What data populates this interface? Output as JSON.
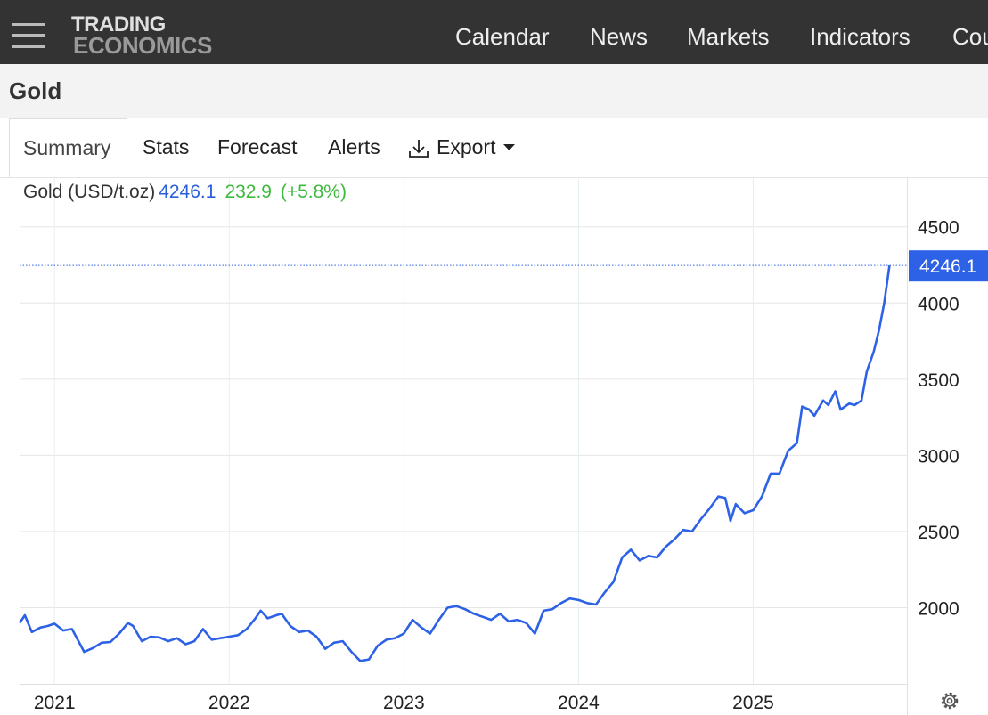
{
  "header": {
    "logo_line1": "TRADING",
    "logo_line2": "ECONOMICS",
    "nav": [
      "Calendar",
      "News",
      "Markets",
      "Indicators",
      "Countries"
    ]
  },
  "page_title": "Gold",
  "tabs": [
    "Summary",
    "Stats",
    "Forecast",
    "Alerts",
    "Export"
  ],
  "chart_data": {
    "type": "line",
    "change": 232.9,
    "change_percent_label": "(+5.8%)",
    "x": [
      2020.8,
      2020.83,
      2020.87,
      2020.92,
      2020.96,
      2021.0,
      2021.05,
      2021.1,
      2021.17,
      2021.22,
      2021.27,
      2021.32,
      2021.37,
      2021.42,
      2021.45,
      2021.5,
      2021.55,
      2021.6,
      2021.65,
      2021.7,
      2021.75,
      2021.8,
      2021.85,
      2021.9,
      2021.95,
      2022.0,
      2022.05,
      2022.1,
      2022.15,
      2022.18,
      2022.22,
      2022.27,
      2022.3,
      2022.35,
      2022.4,
      2022.45,
      2022.5,
      2022.55,
      2022.6,
      2022.65,
      2022.7,
      2022.75,
      2022.8,
      2022.85,
      2022.9,
      2022.95,
      2023.0,
      2023.05,
      2023.1,
      2023.15,
      2023.2,
      2023.25,
      2023.3,
      2023.35,
      2023.4,
      2023.45,
      2023.5,
      2023.55,
      2023.6,
      2023.65,
      2023.7,
      2023.75,
      2023.8,
      2023.85,
      2023.9,
      2023.95,
      2024.0,
      2024.05,
      2024.1,
      2024.15,
      2024.2,
      2024.25,
      2024.3,
      2024.35,
      2024.4,
      2024.45,
      2024.5,
      2024.55,
      2024.6,
      2024.65,
      2024.7,
      2024.75,
      2024.8,
      2024.84,
      2024.87,
      2024.9,
      2024.95,
      2025.0,
      2025.05,
      2025.1,
      2025.15,
      2025.2,
      2025.25,
      2025.28,
      2025.32,
      2025.35,
      2025.4,
      2025.43,
      2025.47,
      2025.5,
      2025.55,
      2025.58,
      2025.62,
      2025.65,
      2025.69,
      2025.72,
      2025.75,
      2025.78
    ],
    "series": [
      {
        "name": "Gold (USD/t.oz)",
        "color": "#2e62e6",
        "values": [
          1900,
          1950,
          1840,
          1870,
          1880,
          1895,
          1850,
          1860,
          1710,
          1735,
          1770,
          1775,
          1830,
          1900,
          1880,
          1780,
          1810,
          1805,
          1780,
          1800,
          1760,
          1780,
          1860,
          1790,
          1800,
          1810,
          1820,
          1860,
          1930,
          1980,
          1930,
          1950,
          1960,
          1880,
          1840,
          1850,
          1810,
          1730,
          1770,
          1780,
          1710,
          1650,
          1660,
          1750,
          1790,
          1800,
          1830,
          1920,
          1870,
          1830,
          1920,
          2000,
          2010,
          1990,
          1960,
          1940,
          1920,
          1960,
          1910,
          1920,
          1900,
          1830,
          1980,
          1990,
          2030,
          2060,
          2050,
          2030,
          2020,
          2100,
          2170,
          2330,
          2380,
          2310,
          2340,
          2330,
          2400,
          2450,
          2510,
          2500,
          2580,
          2650,
          2730,
          2720,
          2570,
          2680,
          2620,
          2640,
          2730,
          2880,
          2880,
          3030,
          3080,
          3320,
          3300,
          3260,
          3360,
          3330,
          3420,
          3300,
          3340,
          3330,
          3360,
          3550,
          3680,
          3820,
          4000,
          4246.1
        ]
      }
    ],
    "xlim": [
      2020.8,
      2025.88
    ],
    "xticks": [
      2021,
      2022,
      2023,
      2024,
      2025
    ],
    "ylim": [
      1500,
      4820
    ],
    "yticks": [
      2000,
      2500,
      3000,
      3500,
      4000,
      4500
    ],
    "grid": true
  }
}
